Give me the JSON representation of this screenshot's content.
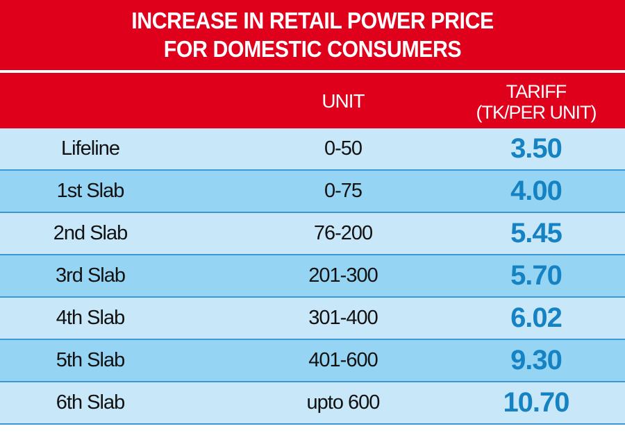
{
  "title": [
    "INCREASE IN RETAIL POWER PRICE",
    "FOR DOMESTIC CONSUMERS"
  ],
  "header": {
    "unit": "UNIT",
    "tariff_line1": "TARIFF",
    "tariff_line2": "(TK/PER UNIT)"
  },
  "colors": {
    "red": "#df001c",
    "row_light": "#c8e7f8",
    "row_dark": "#95d4f3",
    "value": "#1583c3",
    "divider": "#3b98d4"
  },
  "chart_data": {
    "type": "table",
    "title": "INCREASE IN RETAIL POWER PRICE FOR DOMESTIC CONSUMERS",
    "columns": [
      "",
      "UNIT",
      "TARIFF (TK/PER UNIT)"
    ],
    "rows": [
      {
        "slab": "Lifeline",
        "unit": "0-50",
        "tariff": "3.50"
      },
      {
        "slab": "1st Slab",
        "unit": "0-75",
        "tariff": "4.00"
      },
      {
        "slab": "2nd Slab",
        "unit": "76-200",
        "tariff": "5.45"
      },
      {
        "slab": "3rd Slab",
        "unit": "201-300",
        "tariff": "5.70"
      },
      {
        "slab": "4th Slab",
        "unit": "301-400",
        "tariff": "6.02"
      },
      {
        "slab": "5th Slab",
        "unit": "401-600",
        "tariff": "9.30"
      },
      {
        "slab": "6th Slab",
        "unit": "upto 600",
        "tariff": "10.70"
      }
    ]
  }
}
